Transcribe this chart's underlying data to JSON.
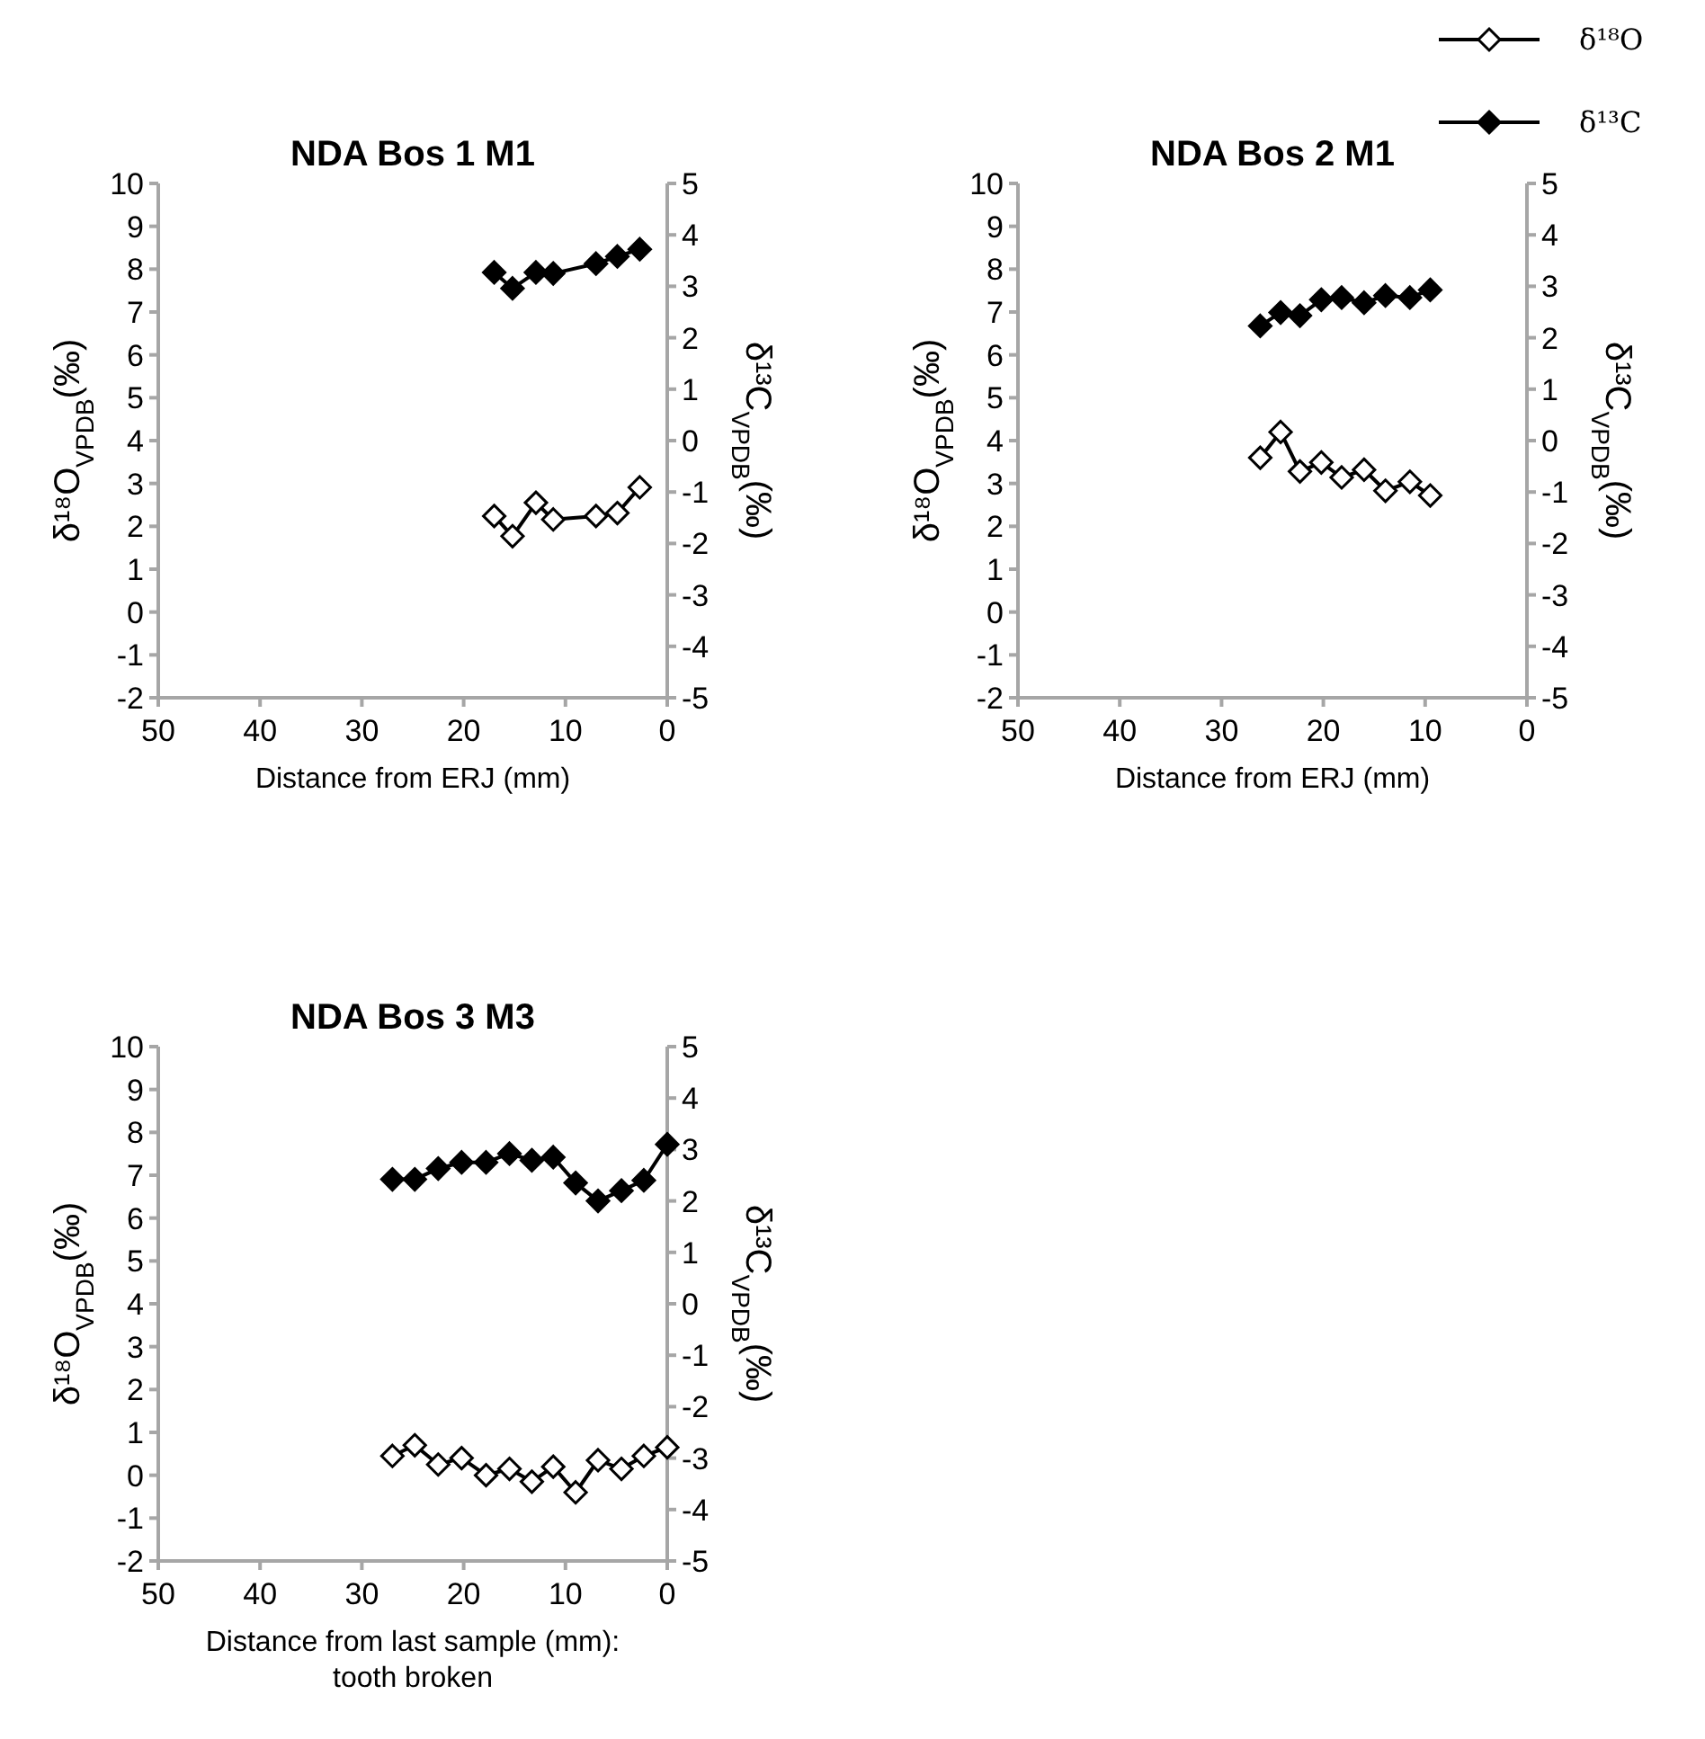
{
  "chart_data": [
    {
      "type": "line",
      "title": "NDA Bos 1 M1",
      "xlabel": "Distance from ERJ (mm)",
      "ylabel": "δ¹⁸O$_{VPDB}$(‰)",
      "y2label": "δ¹³C$_{VPDB}$(‰)",
      "xlim": [
        50,
        0
      ],
      "xticks": [
        50,
        40,
        30,
        20,
        10,
        0
      ],
      "ylim": [
        -2,
        10
      ],
      "yticks": [
        -2,
        -1,
        0,
        1,
        2,
        3,
        4,
        5,
        6,
        7,
        8,
        9,
        10
      ],
      "y2lim": [
        -5,
        5
      ],
      "y2ticks": [
        -5,
        -4,
        -3,
        -2,
        -1,
        0,
        1,
        2,
        3,
        4,
        5
      ],
      "marker": "diamond",
      "line_style": "solid",
      "grid": false,
      "legend": false,
      "x": [
        17,
        15.2,
        12.9,
        11.2,
        7,
        4.9,
        2.7
      ],
      "series": [
        {
          "color": "#ffffff",
          "values": [
            2.24,
            1.77,
            2.55,
            2.16,
            2.24,
            2.31,
            2.91
          ]
        },
        {
          "color": "#000000",
          "axis": "y2",
          "values": [
            3.27,
            2.96,
            3.27,
            3.25,
            3.44,
            3.58,
            3.72
          ]
        }
      ]
    },
    {
      "type": "line",
      "title": "NDA Bos 2 M1",
      "xlabel": "Distance from ERJ (mm)",
      "ylabel": "δ¹⁸O$_{VPDB}$(‰)",
      "y2label": "δ¹³C$_{VPDB}$(‰)",
      "xlim": [
        50,
        0
      ],
      "xticks": [
        50,
        40,
        30,
        20,
        10,
        0
      ],
      "ylim": [
        -2,
        10
      ],
      "yticks": [
        -2,
        -1,
        0,
        1,
        2,
        3,
        4,
        5,
        6,
        7,
        8,
        9,
        10
      ],
      "y2lim": [
        -5,
        5
      ],
      "y2ticks": [
        -5,
        -4,
        -3,
        -2,
        -1,
        0,
        1,
        2,
        3,
        4,
        5
      ],
      "marker": "diamond",
      "line_style": "solid",
      "grid": false,
      "legend": "top right",
      "x": [
        26.2,
        24.2,
        22.3,
        20.2,
        18.2,
        16,
        13.9,
        11.5,
        9.5
      ],
      "series": [
        {
          "name": "δ¹⁸O",
          "color": "#ffffff",
          "values": [
            3.6,
            4.2,
            3.28,
            3.49,
            3.14,
            3.32,
            2.83,
            3.04,
            2.72
          ]
        },
        {
          "name": "δ¹³C",
          "color": "#000000",
          "axis": "y2",
          "values": [
            2.23,
            2.49,
            2.43,
            2.74,
            2.78,
            2.68,
            2.82,
            2.78,
            2.93
          ]
        }
      ]
    },
    {
      "type": "line",
      "title": "NDA Bos 3 M3",
      "xlabel": "Distance from last sample (mm):\ntooth broken",
      "ylabel": "δ¹⁸O$_{VPDB}$(‰)",
      "y2label": "δ¹³C$_{VPDB}$(‰)",
      "xlim": [
        50,
        0
      ],
      "xticks": [
        50,
        40,
        30,
        20,
        10,
        0
      ],
      "ylim": [
        -2,
        10
      ],
      "yticks": [
        -2,
        -1,
        0,
        1,
        2,
        3,
        4,
        5,
        6,
        7,
        8,
        9,
        10
      ],
      "y2lim": [
        -5,
        5
      ],
      "y2ticks": [
        -5,
        -4,
        -3,
        -2,
        -1,
        0,
        1,
        2,
        3,
        4,
        5
      ],
      "marker": "diamond",
      "line_style": "solid",
      "grid": false,
      "legend": false,
      "x": [
        27,
        24.8,
        22.5,
        20.2,
        17.8,
        15.5,
        13.3,
        11.2,
        9,
        6.8,
        4.5,
        2.3,
        0
      ],
      "series": [
        {
          "color": "#ffffff",
          "values": [
            0.45,
            0.7,
            0.25,
            0.4,
            0.0,
            0.15,
            -0.15,
            0.2,
            -0.4,
            0.35,
            0.15,
            0.45,
            0.65
          ]
        },
        {
          "color": "#000000",
          "axis": "y2",
          "values": [
            2.42,
            2.42,
            2.63,
            2.75,
            2.75,
            2.92,
            2.79,
            2.85,
            2.35,
            2.0,
            2.2,
            2.4,
            3.1
          ]
        }
      ]
    }
  ]
}
